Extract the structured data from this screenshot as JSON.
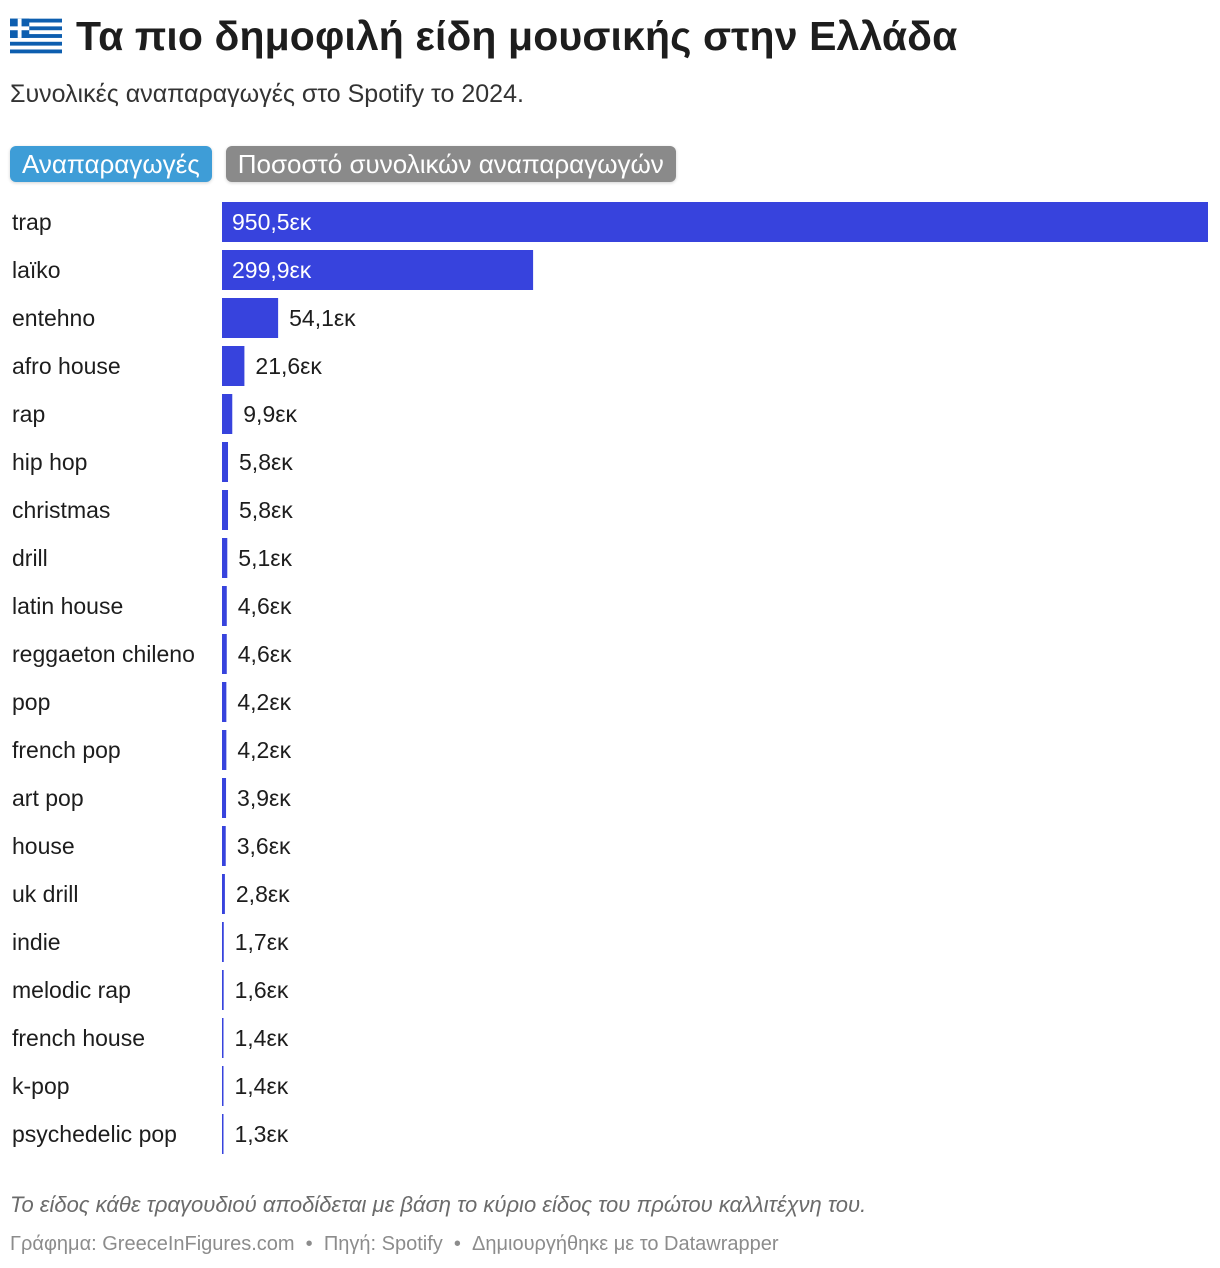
{
  "header": {
    "title": "Τα πιο δημοφιλή είδη μουσικής στην Ελλάδα",
    "subtitle": "Συνολικές αναπαραγωγές στο Spotify το 2024."
  },
  "tabs": [
    {
      "label": "Αναπαραγωγές",
      "active": true
    },
    {
      "label": "Ποσοστό συνολικών αναπαραγωγών",
      "active": false
    }
  ],
  "chart_data": {
    "type": "bar",
    "orientation": "horizontal",
    "categories": [
      "trap",
      "laïko",
      "entehno",
      "afro house",
      "rap",
      "hip hop",
      "christmas",
      "drill",
      "latin house",
      "reggaeton chileno",
      "pop",
      "french pop",
      "art pop",
      "house",
      "uk drill",
      "indie",
      "melodic rap",
      "french house",
      "k-pop",
      "psychedelic pop"
    ],
    "values": [
      950.5,
      299.9,
      54.1,
      21.6,
      9.9,
      5.8,
      5.8,
      5.1,
      4.6,
      4.6,
      4.2,
      4.2,
      3.9,
      3.6,
      2.8,
      1.7,
      1.6,
      1.4,
      1.4,
      1.3
    ],
    "value_labels": [
      "950,5εκ",
      "299,9εκ",
      "54,1εκ",
      "21,6εκ",
      "9,9εκ",
      "5,8εκ",
      "5,8εκ",
      "5,1εκ",
      "4,6εκ",
      "4,6εκ",
      "4,2εκ",
      "4,2εκ",
      "3,9εκ",
      "3,6εκ",
      "2,8εκ",
      "1,7εκ",
      "1,6εκ",
      "1,4εκ",
      "1,4εκ",
      "1,3εκ"
    ],
    "unit": "εκ",
    "xlim": [
      0,
      950.5
    ],
    "bar_color": "#3743dd",
    "label_inside_color": "#ffffff",
    "label_outside_color": "#1d1d1d"
  },
  "notes": {
    "caption": "Το είδος κάθε τραγουδιού αποδίδεται με βάση το κύριο είδος του πρώτου καλλιτέχνη του.",
    "footer": {
      "chart_by": "Γράφημα: GreeceInFigures.com",
      "source": "Πηγή: Spotify",
      "created_with": "Δημιουργήθηκε με το Datawrapper",
      "separator": "•"
    }
  }
}
